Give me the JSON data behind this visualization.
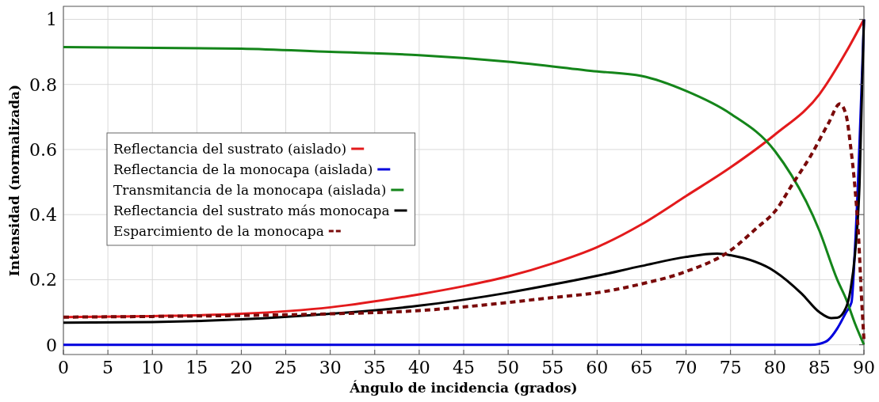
{
  "chart_data": {
    "type": "line",
    "xlabel": "Ángulo de incidencia (grados)",
    "ylabel": "Intensidad (normalizada)",
    "xlim": [
      0,
      90
    ],
    "ylim": [
      -0.03,
      1.04
    ],
    "xticks": [
      0,
      5,
      10,
      15,
      20,
      25,
      30,
      35,
      40,
      45,
      50,
      55,
      60,
      65,
      70,
      75,
      80,
      85,
      90
    ],
    "yticks": [
      0,
      0.2,
      0.4,
      0.6,
      0.8,
      1
    ],
    "grid": true,
    "legend": "left",
    "series": [
      {
        "name": "Reflectancia del sustrato (aislado)",
        "color": "#e31a1c",
        "line_style": "solid",
        "x": [
          0,
          10,
          20,
          30,
          40,
          45,
          50,
          55,
          60,
          65,
          70,
          75,
          80,
          85,
          88,
          90
        ],
        "values": [
          0.085,
          0.088,
          0.095,
          0.115,
          0.155,
          0.18,
          0.21,
          0.25,
          0.3,
          0.37,
          0.457,
          0.545,
          0.646,
          0.77,
          0.9,
          1.0
        ]
      },
      {
        "name": "Reflectancia de la monocapa (aislada)",
        "color": "#0000dd",
        "line_style": "solid",
        "x": [
          0,
          20,
          40,
          60,
          80,
          84,
          85,
          86,
          87,
          88,
          88.6,
          89,
          90
        ],
        "values": [
          0,
          0,
          0,
          0,
          0,
          0,
          0.003,
          0.015,
          0.05,
          0.1,
          0.13,
          0.3,
          1.0
        ]
      },
      {
        "name": "Transmitancia de la monocapa (aislada)",
        "color": "#14851a",
        "line_style": "solid",
        "x": [
          0,
          20,
          30,
          40,
          50,
          60,
          65,
          70,
          75,
          80,
          85,
          87,
          88,
          89,
          90
        ],
        "values": [
          0.915,
          0.91,
          0.9,
          0.89,
          0.87,
          0.84,
          0.826,
          0.78,
          0.71,
          0.595,
          0.35,
          0.2,
          0.14,
          0.065,
          0
        ]
      },
      {
        "name": "Reflectancia del sustrato más monocapa",
        "color": "#000000",
        "line_style": "solid",
        "x": [
          0,
          10,
          20,
          30,
          40,
          50,
          55,
          60,
          65,
          70,
          73.5,
          75,
          80,
          83,
          85,
          86.3,
          87,
          88,
          88.5,
          89,
          89.5,
          90
        ],
        "values": [
          0.068,
          0.07,
          0.078,
          0.095,
          0.12,
          0.16,
          0.185,
          0.212,
          0.242,
          0.27,
          0.28,
          0.275,
          0.225,
          0.157,
          0.1,
          0.082,
          0.083,
          0.115,
          0.17,
          0.28,
          0.49,
          1.0
        ]
      },
      {
        "name": "Esparcimiento de la monocapa",
        "color": "#7a0a0a",
        "line_style": "dashed",
        "x": [
          0,
          10,
          20,
          30,
          40,
          50,
          55,
          60,
          65,
          70,
          75,
          78,
          80,
          82,
          84,
          86,
          87.3,
          88,
          88.5,
          89,
          89.4,
          89.7,
          90
        ],
        "values": [
          0.085,
          0.087,
          0.09,
          0.095,
          0.105,
          0.13,
          0.145,
          0.16,
          0.187,
          0.225,
          0.29,
          0.36,
          0.41,
          0.495,
          0.58,
          0.68,
          0.74,
          0.705,
          0.61,
          0.48,
          0.33,
          0.16,
          0.015
        ]
      }
    ]
  }
}
